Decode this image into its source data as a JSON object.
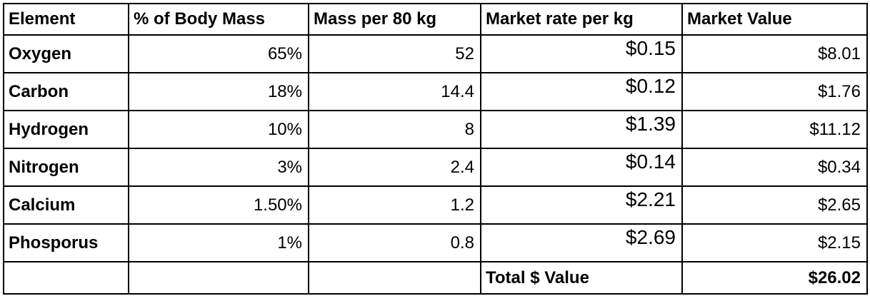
{
  "table": {
    "header": [
      "Element",
      "% of Body Mass",
      "Mass per 80 kg",
      "Market rate per kg",
      "Market Value"
    ],
    "rows": [
      [
        "Oxygen",
        "65%",
        "52",
        "$0.15",
        "$8.01"
      ],
      [
        "Carbon",
        "18%",
        "14.4",
        "$0.12",
        "$1.76"
      ],
      [
        "Hydrogen",
        "10%",
        "8",
        "$1.39",
        "$11.12"
      ],
      [
        "Nitrogen",
        "3%",
        "2.4",
        "$0.14",
        "$0.34"
      ],
      [
        "Calcium",
        "1.50%",
        "1.2",
        "$2.21",
        "$2.65"
      ],
      [
        "Phosporus",
        "1%",
        "0.8",
        "$2.69",
        "$2.15"
      ]
    ],
    "total": {
      "label": "Total $ Value",
      "value": "$26.02"
    }
  }
}
